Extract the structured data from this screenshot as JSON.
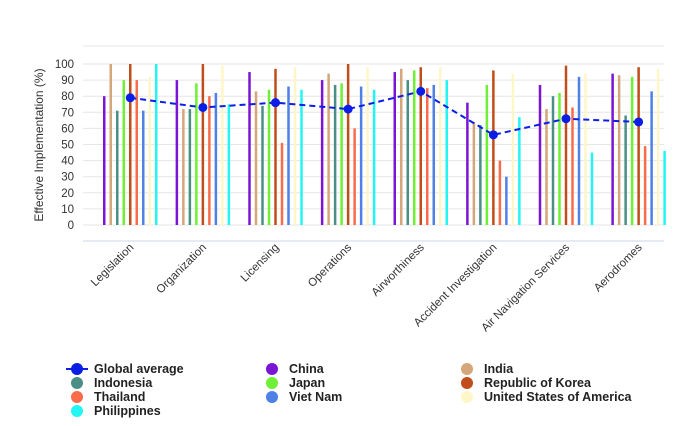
{
  "chart_data": {
    "type": "bar",
    "title": "",
    "xlabel": "",
    "ylabel": "Effective Implementation (%)",
    "ylim": [
      0,
      100
    ],
    "yticks": [
      0,
      10,
      20,
      30,
      40,
      50,
      60,
      70,
      80,
      90,
      100
    ],
    "grid": true,
    "categories": [
      "Legislation",
      "Organization",
      "Licensing",
      "Operations",
      "Airworthiness",
      "Accident Investigation",
      "Air Navigation Services",
      "Aerodromes"
    ],
    "series": [
      {
        "name": "China",
        "color": "#7b15d6",
        "values": [
          80,
          90,
          95,
          90,
          95,
          76,
          87,
          94
        ]
      },
      {
        "name": "India",
        "color": "#d4a679",
        "values": [
          100,
          72,
          83,
          94,
          97,
          64,
          72,
          93
        ]
      },
      {
        "name": "Indonesia",
        "color": "#4a8f86",
        "values": [
          71,
          72,
          74,
          87,
          90,
          62,
          80,
          68
        ]
      },
      {
        "name": "Japan",
        "color": "#6ff035",
        "values": [
          90,
          88,
          84,
          88,
          96,
          87,
          82,
          92
        ]
      },
      {
        "name": "Republic of Korea",
        "color": "#c14d1a",
        "values": [
          100,
          100,
          97,
          100,
          98,
          96,
          99,
          98
        ]
      },
      {
        "name": "Thailand",
        "color": "#fa6b4b",
        "values": [
          90,
          80,
          51,
          60,
          85,
          40,
          73,
          49
        ]
      },
      {
        "name": "Viet Nam",
        "color": "#4f80e6",
        "values": [
          71,
          82,
          86,
          86,
          87,
          30,
          92,
          83
        ]
      },
      {
        "name": "United States of America",
        "color": "#fff6c8",
        "values": [
          92,
          99,
          98,
          98,
          98,
          94,
          94,
          97
        ]
      },
      {
        "name": "Philippines",
        "color": "#23f5f3",
        "values": [
          100,
          75,
          84,
          84,
          90,
          67,
          45,
          46
        ]
      }
    ],
    "global_average": {
      "name": "Global average",
      "color": "#0b1ee6",
      "values": [
        79,
        73,
        76,
        72,
        83,
        56,
        66,
        64
      ]
    },
    "legend": {
      "position": "bottom",
      "items": [
        "Global average",
        "China",
        "India",
        "Indonesia",
        "Japan",
        "Republic of Korea",
        "Thailand",
        "Viet Nam",
        "United States of America",
        "Philippines"
      ]
    }
  }
}
